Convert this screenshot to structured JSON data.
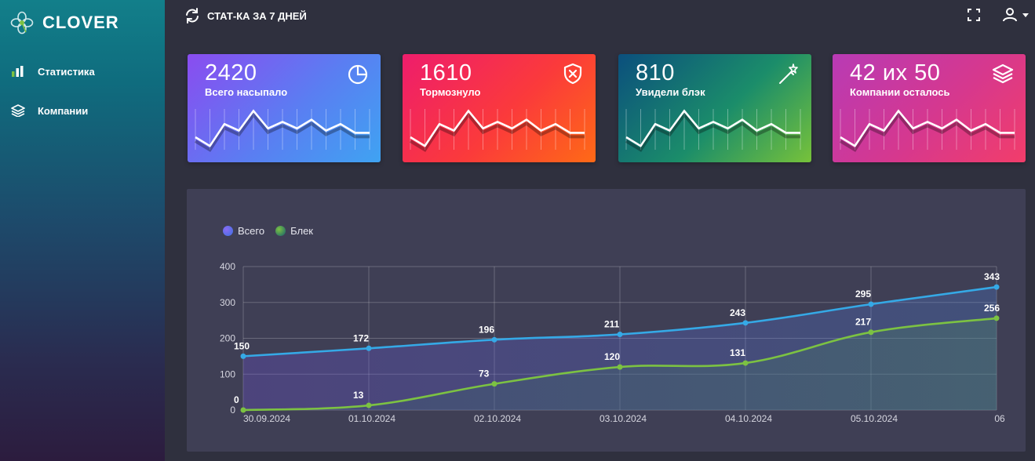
{
  "app": {
    "name": "CLOVER"
  },
  "sidebar": {
    "items": [
      {
        "label": "Статистика",
        "icon": "bar-chart-icon"
      },
      {
        "label": "Компании",
        "icon": "layers-icon"
      }
    ]
  },
  "header": {
    "title": "СТАТ-КА ЗА 7 ДНЕЙ",
    "icons": [
      "refresh-icon",
      "fullscreen-icon",
      "user-icon",
      "caret-down-icon"
    ]
  },
  "cards": [
    {
      "value": "2420",
      "label": "Всего насыпало",
      "icon": "pie-chart-icon"
    },
    {
      "value": "1610",
      "label": "Тормознуло",
      "icon": "shield-x-icon"
    },
    {
      "value": "810",
      "label": "Увидели блэк",
      "icon": "magic-wand-icon"
    },
    {
      "value": "42 их 50",
      "label": "Компании осталось",
      "icon": "layers-icon"
    }
  ],
  "sparkline": [
    10,
    2,
    22,
    16,
    34,
    18,
    24,
    18,
    26,
    16,
    22,
    14,
    14
  ],
  "chart_data": {
    "type": "line",
    "x": [
      "30.09.2024",
      "01.10.2024",
      "02.10.2024",
      "03.10.2024",
      "04.10.2024",
      "05.10.2024",
      "06"
    ],
    "series": [
      {
        "name": "Всего",
        "values": [
          150,
          172,
          196,
          211,
          243,
          295,
          343
        ],
        "color": "#35a9e6"
      },
      {
        "name": "Блек",
        "values": [
          0,
          13,
          73,
          120,
          131,
          217,
          256
        ],
        "color": "#7cc242"
      }
    ],
    "yticks": [
      0,
      100,
      200,
      300,
      400
    ],
    "ylim": [
      0,
      400
    ],
    "grid": true,
    "legend": "top-left"
  },
  "colors": {
    "background": "#2f303e",
    "panel": "#3f3f55",
    "line_total": "#35a9e6",
    "line_black": "#7cc242"
  }
}
